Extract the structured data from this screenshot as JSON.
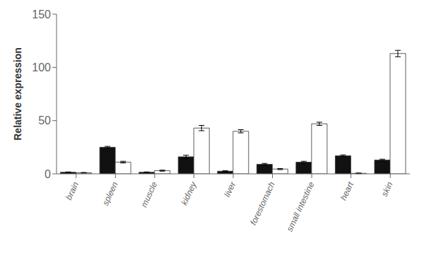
{
  "chart_data": {
    "type": "bar",
    "ylabel": "Relative expression",
    "categories": [
      "brain",
      "spleen",
      "muscle",
      "kidney",
      "liver",
      "forestomach",
      "small intestine",
      "heart",
      "skin"
    ],
    "series": [
      {
        "color": "#111111",
        "values": [
          1.5,
          25.0,
          1.5,
          16.0,
          2.5,
          9.0,
          11.0,
          17.0,
          13.0
        ],
        "errors": [
          0.3,
          0.8,
          0.3,
          1.5,
          0.4,
          0.8,
          0.8,
          0.8,
          0.8
        ]
      },
      {
        "color": "#ffffff",
        "values": [
          1.0,
          11.0,
          3.0,
          43.0,
          40.0,
          4.5,
          47.0,
          0.5,
          113.0
        ],
        "errors": [
          0.3,
          0.8,
          0.5,
          2.5,
          1.5,
          0.5,
          1.5,
          0.3,
          3.0
        ]
      }
    ],
    "ylim": [
      0,
      150
    ],
    "yticks": [
      0,
      50,
      100,
      150
    ],
    "grid": false
  }
}
